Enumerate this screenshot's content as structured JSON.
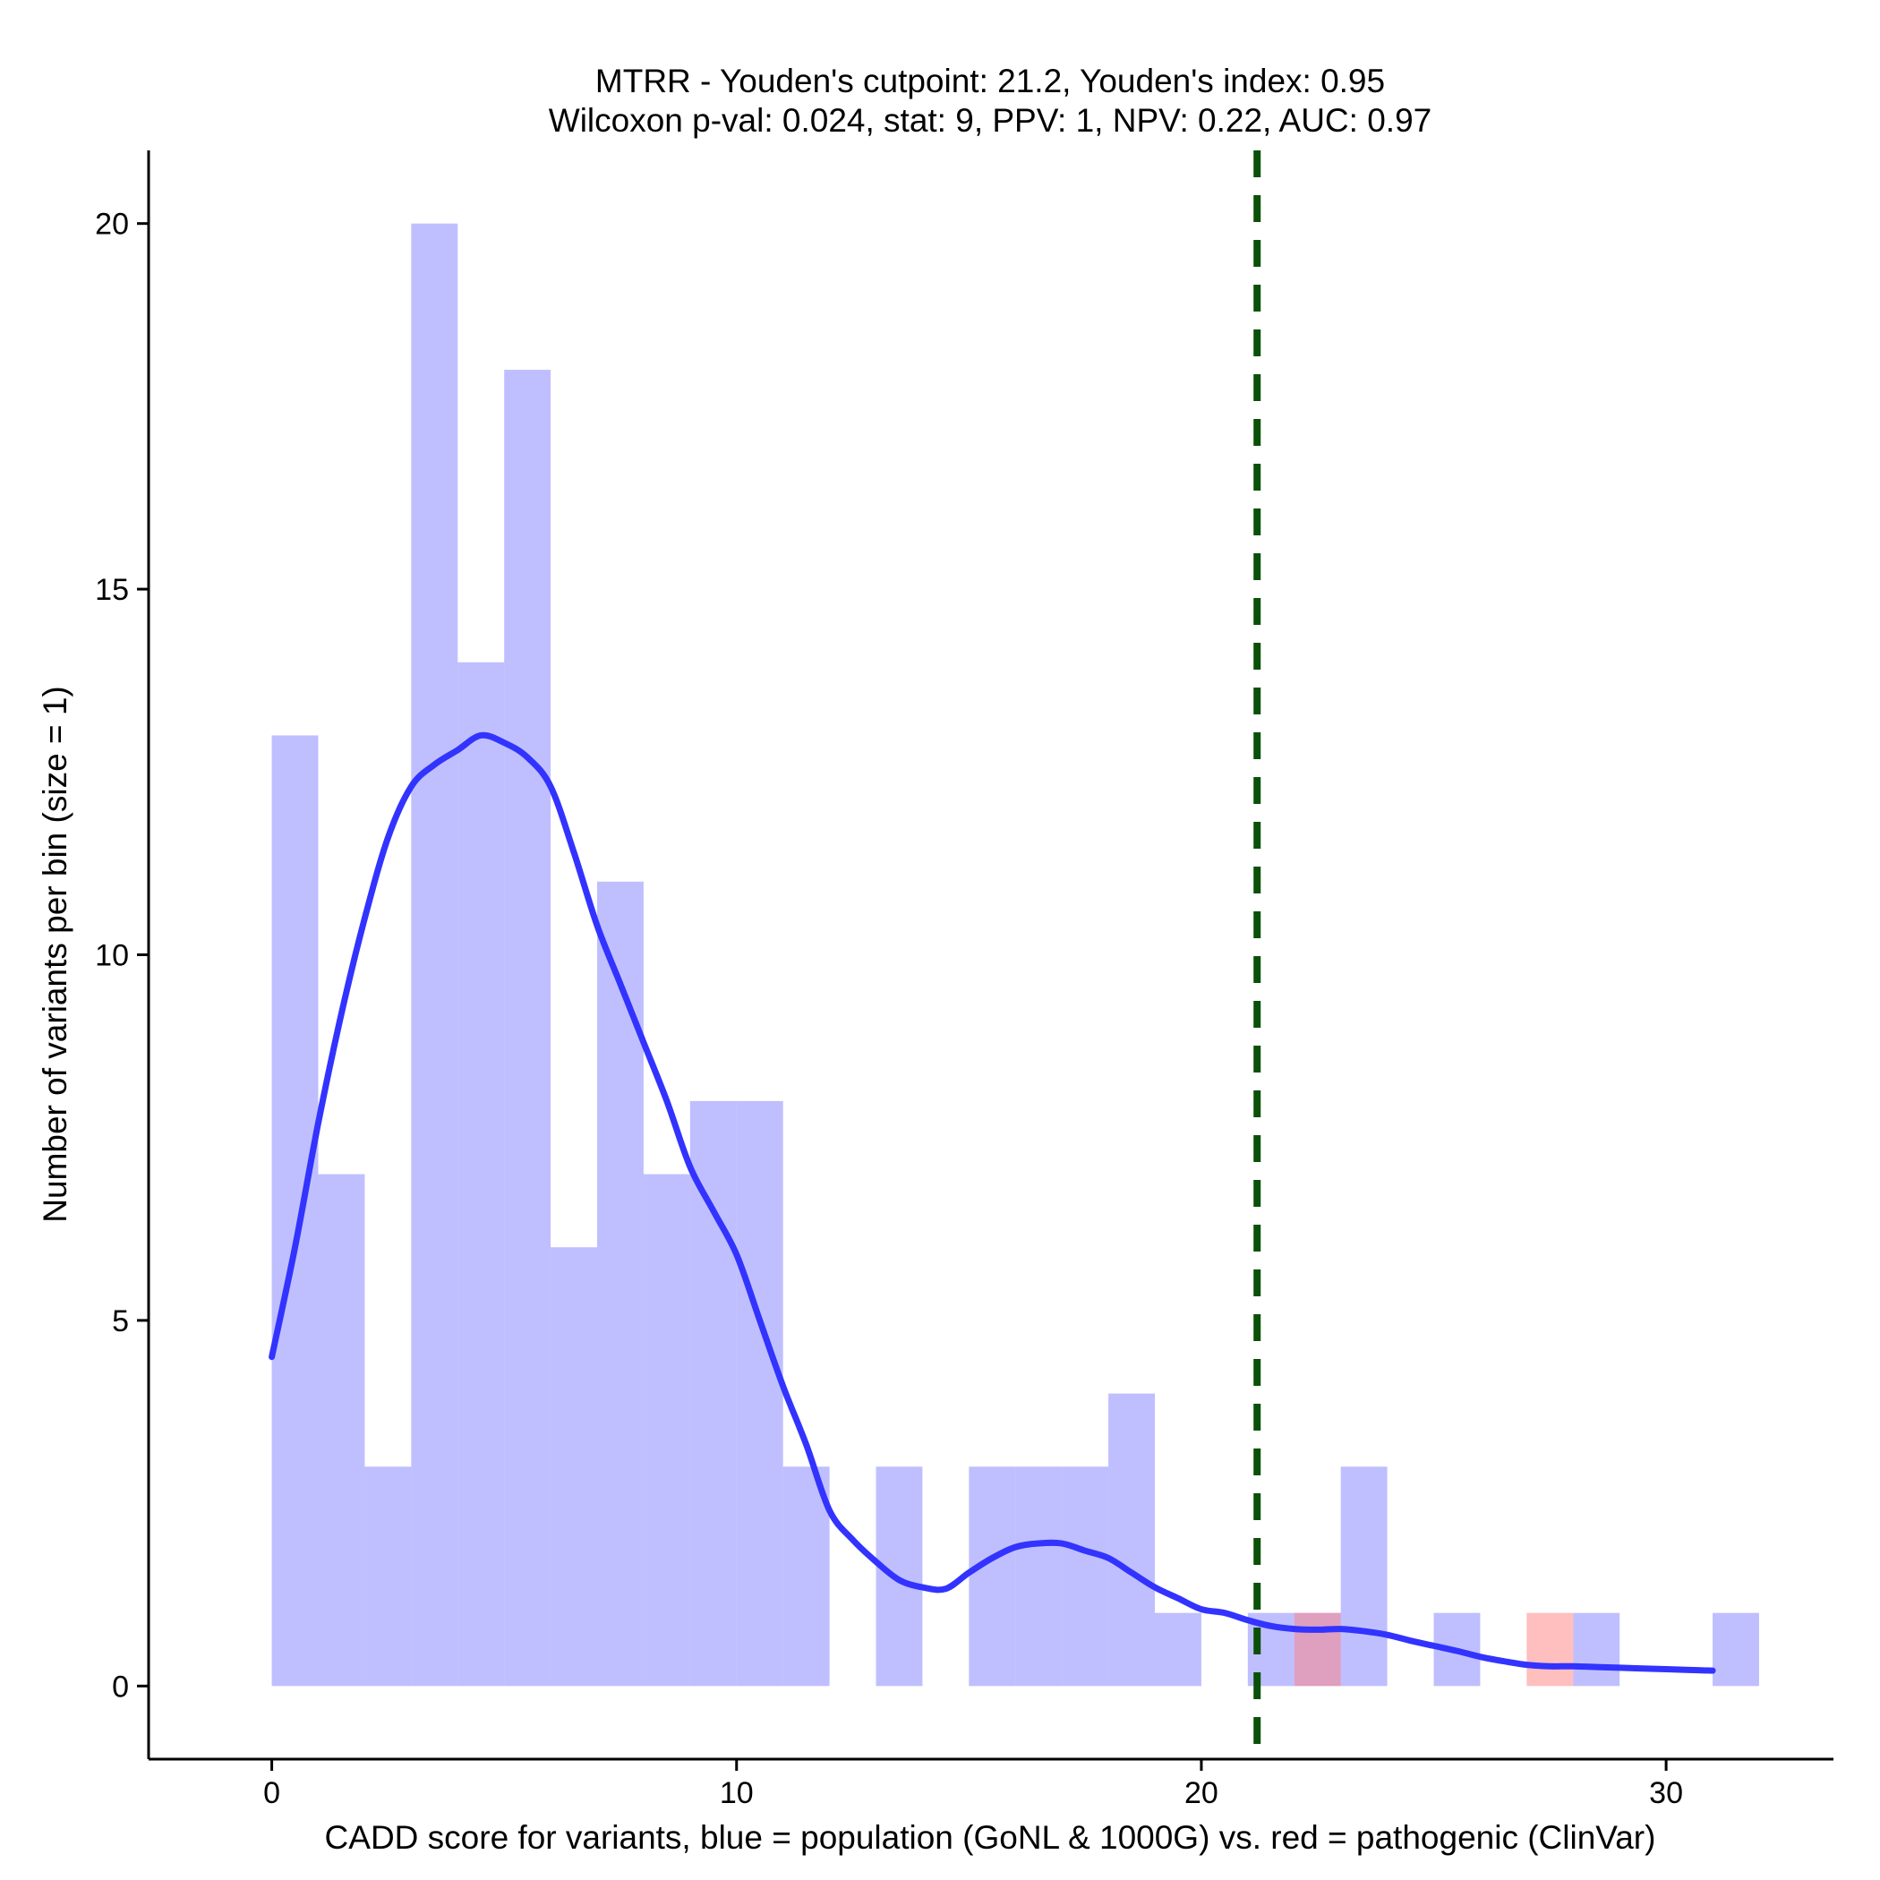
{
  "chart_data": {
    "type": "bar",
    "title_lines": [
      "MTRR - Youden's cutpoint: 21.2, Youden's index: 0.95",
      "Wilcoxon p-val: 0.024, stat: 9, PPV: 1, NPV: 0.22, AUC: 0.97"
    ],
    "xlabel": "CADD score for variants, blue = population (GoNL & 1000G) vs. red = pathogenic (ClinVar)",
    "ylabel": "Number of variants per bin (size = 1)",
    "xlim": [
      -2.65,
      33.6
    ],
    "ylim": [
      -1.0,
      21.0
    ],
    "xticks": [
      0,
      10,
      20,
      30
    ],
    "yticks": [
      0,
      5,
      10,
      15,
      20
    ],
    "bin_width": 1,
    "series": [
      {
        "name": "population (GoNL & 1000G)",
        "color": "#8080ff",
        "opacity": 0.5,
        "bins": [
          {
            "x": 0,
            "count": 13
          },
          {
            "x": 1,
            "count": 7
          },
          {
            "x": 2,
            "count": 3
          },
          {
            "x": 3,
            "count": 20
          },
          {
            "x": 4,
            "count": 14
          },
          {
            "x": 5,
            "count": 18
          },
          {
            "x": 6,
            "count": 6
          },
          {
            "x": 7,
            "count": 11
          },
          {
            "x": 8,
            "count": 7
          },
          {
            "x": 9,
            "count": 8
          },
          {
            "x": 10,
            "count": 8
          },
          {
            "x": 11,
            "count": 3
          },
          {
            "x": 13,
            "count": 3
          },
          {
            "x": 15,
            "count": 3
          },
          {
            "x": 16,
            "count": 3
          },
          {
            "x": 17,
            "count": 3
          },
          {
            "x": 18,
            "count": 4
          },
          {
            "x": 19,
            "count": 1
          },
          {
            "x": 21,
            "count": 1
          },
          {
            "x": 22,
            "count": 1
          },
          {
            "x": 23,
            "count": 3
          },
          {
            "x": 25,
            "count": 1
          },
          {
            "x": 28,
            "count": 1
          },
          {
            "x": 31,
            "count": 1
          }
        ]
      },
      {
        "name": "pathogenic (ClinVar)",
        "color": "#ff8080",
        "opacity": 0.5,
        "bins": [
          {
            "x": 22,
            "count": 1
          },
          {
            "x": 27,
            "count": 1
          }
        ]
      }
    ],
    "density_curve": {
      "name": "population density",
      "color": "#3333ff",
      "points": [
        [
          0,
          4.5
        ],
        [
          0.5,
          6.0
        ],
        [
          1,
          7.7
        ],
        [
          1.5,
          9.2
        ],
        [
          2,
          10.5
        ],
        [
          2.5,
          11.6
        ],
        [
          3,
          12.3
        ],
        [
          3.5,
          12.6
        ],
        [
          4,
          12.8
        ],
        [
          4.5,
          13.0
        ],
        [
          5,
          12.9
        ],
        [
          5.5,
          12.7
        ],
        [
          6,
          12.3
        ],
        [
          6.5,
          11.4
        ],
        [
          7,
          10.4
        ],
        [
          7.5,
          9.6
        ],
        [
          8,
          8.8
        ],
        [
          8.5,
          8.0
        ],
        [
          9,
          7.1
        ],
        [
          9.5,
          6.5
        ],
        [
          10,
          5.9
        ],
        [
          10.5,
          5.0
        ],
        [
          11,
          4.1
        ],
        [
          11.5,
          3.3
        ],
        [
          12,
          2.4
        ],
        [
          12.5,
          2.0
        ],
        [
          13,
          1.7
        ],
        [
          13.5,
          1.45
        ],
        [
          14,
          1.35
        ],
        [
          14.5,
          1.33
        ],
        [
          15,
          1.55
        ],
        [
          15.5,
          1.75
        ],
        [
          16,
          1.9
        ],
        [
          16.5,
          1.95
        ],
        [
          17,
          1.95
        ],
        [
          17.5,
          1.85
        ],
        [
          18,
          1.75
        ],
        [
          18.5,
          1.55
        ],
        [
          19,
          1.35
        ],
        [
          19.5,
          1.2
        ],
        [
          20,
          1.05
        ],
        [
          20.5,
          1.0
        ],
        [
          21,
          0.9
        ],
        [
          21.5,
          0.82
        ],
        [
          22,
          0.78
        ],
        [
          22.5,
          0.77
        ],
        [
          23,
          0.78
        ],
        [
          23.5,
          0.75
        ],
        [
          24,
          0.7
        ],
        [
          24.5,
          0.62
        ],
        [
          25,
          0.55
        ],
        [
          25.5,
          0.48
        ],
        [
          26,
          0.4
        ],
        [
          26.5,
          0.34
        ],
        [
          27,
          0.29
        ],
        [
          27.5,
          0.27
        ],
        [
          28,
          0.27
        ],
        [
          28.5,
          0.26
        ],
        [
          29,
          0.25
        ],
        [
          29.5,
          0.24
        ],
        [
          30,
          0.23
        ],
        [
          30.5,
          0.22
        ],
        [
          31,
          0.21
        ]
      ]
    },
    "cutpoint": {
      "x": 21.2,
      "color": "#0a5008",
      "style": "dashed"
    }
  }
}
